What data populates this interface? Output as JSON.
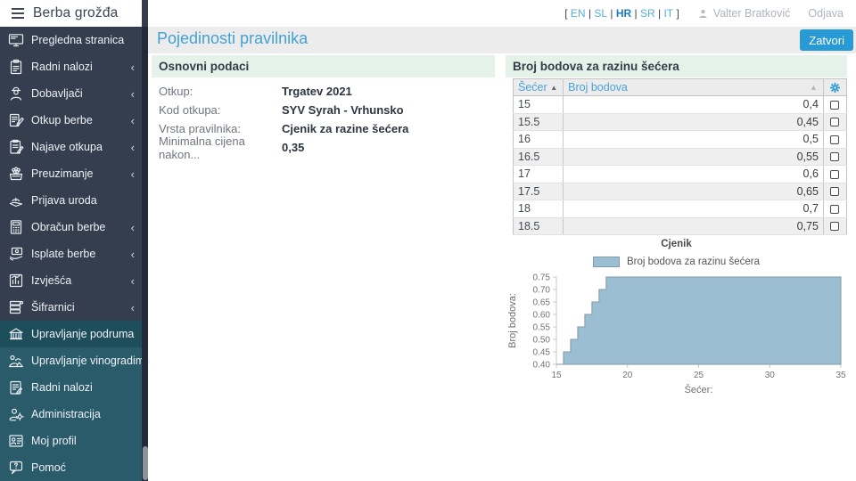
{
  "app": {
    "title": "Berba grožđa"
  },
  "topbar": {
    "languages": [
      "EN",
      "SL",
      "HR",
      "SR",
      "IT"
    ],
    "active_language": "HR",
    "user_name": "Valter Bratković",
    "logout_label": "Odjava"
  },
  "page": {
    "title": "Pojedinosti pravilnika",
    "close_label": "Zatvori"
  },
  "sidebar": {
    "items": [
      {
        "label": "Pregledna stranica",
        "icon": "monitor-icon",
        "expandable": false,
        "section": "top",
        "active": false
      },
      {
        "label": "Radni nalozi",
        "icon": "clipboard-check-icon",
        "expandable": true,
        "section": "top",
        "active": false
      },
      {
        "label": "Dobavljači",
        "icon": "farmer-icon",
        "expandable": true,
        "section": "top",
        "active": false
      },
      {
        "label": "Otkup berbe",
        "icon": "pen-document-icon",
        "expandable": true,
        "section": "top",
        "active": false
      },
      {
        "label": "Najave otkupa",
        "icon": "clipboard-pencil-icon",
        "expandable": true,
        "section": "top",
        "active": false
      },
      {
        "label": "Preuzimanje",
        "icon": "grapes-crate-icon",
        "expandable": true,
        "section": "top",
        "active": false
      },
      {
        "label": "Prijava uroda",
        "icon": "harvest-hand-icon",
        "expandable": false,
        "section": "top",
        "active": false
      },
      {
        "label": "Obračun berbe",
        "icon": "calculator-icon",
        "expandable": true,
        "section": "top",
        "active": false
      },
      {
        "label": "Isplate berbe",
        "icon": "payment-hand-icon",
        "expandable": true,
        "section": "top",
        "active": false
      },
      {
        "label": "Izvješća",
        "icon": "report-icon",
        "expandable": true,
        "section": "top",
        "active": false
      },
      {
        "label": "Šifrarnici",
        "icon": "codebook-icon",
        "expandable": true,
        "section": "top",
        "active": false
      },
      {
        "label": "Upravljanje podruma",
        "icon": "cellar-icon",
        "expandable": false,
        "section": "bottom",
        "active": true
      },
      {
        "label": "Upravljanje vinogradima",
        "icon": "vineyard-icon",
        "expandable": false,
        "section": "bottom",
        "active": false
      },
      {
        "label": "Radni nalozi",
        "icon": "workorder-icon",
        "expandable": false,
        "section": "bottom",
        "active": false
      },
      {
        "label": "Administracija",
        "icon": "admin-gear-icon",
        "expandable": false,
        "section": "bottom",
        "active": false
      },
      {
        "label": "Moj profil",
        "icon": "profile-card-icon",
        "expandable": false,
        "section": "bottom",
        "active": false
      },
      {
        "label": "Pomoć",
        "icon": "help-icon",
        "expandable": false,
        "section": "bottom",
        "active": false
      }
    ]
  },
  "basic_info": {
    "header": "Osnovni podaci",
    "fields": [
      {
        "label": "Otkup:",
        "value": "Trgatev 2021"
      },
      {
        "label": "Kod otkupa:",
        "value": "SYV Syrah - Vrhunsko"
      },
      {
        "label": "Vrsta pravilnika:",
        "value": "Cjenik za razine šećera"
      },
      {
        "label": "Minimalna cijena nakon...",
        "value": "0,35"
      }
    ]
  },
  "points_table": {
    "header": "Broj bodova za razinu šećera",
    "columns": [
      "Šećer",
      "Broj bodova"
    ],
    "rows": [
      {
        "sugar": "15",
        "points": "0,4"
      },
      {
        "sugar": "15.5",
        "points": "0,45"
      },
      {
        "sugar": "16",
        "points": "0,5"
      },
      {
        "sugar": "16.5",
        "points": "0,55"
      },
      {
        "sugar": "17",
        "points": "0,6"
      },
      {
        "sugar": "17.5",
        "points": "0,65"
      },
      {
        "sugar": "18",
        "points": "0,7"
      },
      {
        "sugar": "18.5",
        "points": "0,75"
      }
    ]
  },
  "chart_data": {
    "type": "area",
    "step": true,
    "title": "Cjenik",
    "legend": [
      "Broj bodova za razinu šećera"
    ],
    "legend_position": "top",
    "xlabel": "Šećer:",
    "ylabel": "Broj bodova:",
    "xlim": [
      15,
      35
    ],
    "ylim": [
      0.4,
      0.75
    ],
    "x_ticks": [
      15,
      20,
      25,
      30,
      35
    ],
    "y_ticks": [
      0.4,
      0.45,
      0.5,
      0.55,
      0.6,
      0.65,
      0.7,
      0.75
    ],
    "grid": false,
    "series": [
      {
        "name": "Broj bodova za razinu šećera",
        "x": [
          15,
          15.5,
          16,
          16.5,
          17,
          17.5,
          18,
          18.5
        ],
        "y": [
          0.4,
          0.45,
          0.5,
          0.55,
          0.6,
          0.65,
          0.7,
          0.75
        ],
        "extend_to_x": 35
      }
    ],
    "colors": {
      "fill": "#9cbed2",
      "stroke": "#7f99a6"
    }
  },
  "theme": {
    "accent_blue": "#289bd6",
    "link_blue": "#55aede",
    "sidebar_top_bg": "#343e4e",
    "sidebar_bottom_bg": "#2a5b6b",
    "sidebar_active_bg": "#1e4e5c",
    "panel_header_bg": "#e4f2ea",
    "titlebar_bg": "#ececec"
  }
}
